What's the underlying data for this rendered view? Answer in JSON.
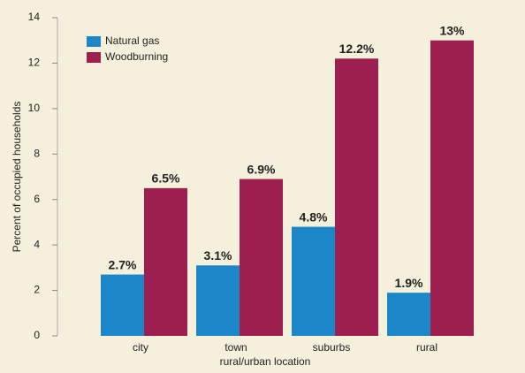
{
  "chart_data": {
    "type": "bar",
    "x_label": "rural/urban location",
    "y_label": "Percent of occupied households",
    "categories": [
      "city",
      "town",
      "suburbs",
      "rural"
    ],
    "series": [
      {
        "name": "Natural gas",
        "color": "#1b87c9",
        "values": [
          2.7,
          3.1,
          4.8,
          1.9
        ],
        "value_labels": [
          "2.7%",
          "3.1%",
          "4.8%",
          "1.9%"
        ]
      },
      {
        "name": "Woodburning",
        "color": "#9c1f50",
        "values": [
          6.5,
          6.9,
          12.2,
          13
        ],
        "value_labels": [
          "6.5%",
          "6.9%",
          "12.2%",
          "13%"
        ]
      }
    ],
    "ylim": [
      0,
      14
    ],
    "yticks": [
      0,
      2,
      4,
      6,
      8,
      10,
      12,
      14
    ],
    "legend": "upper left"
  }
}
